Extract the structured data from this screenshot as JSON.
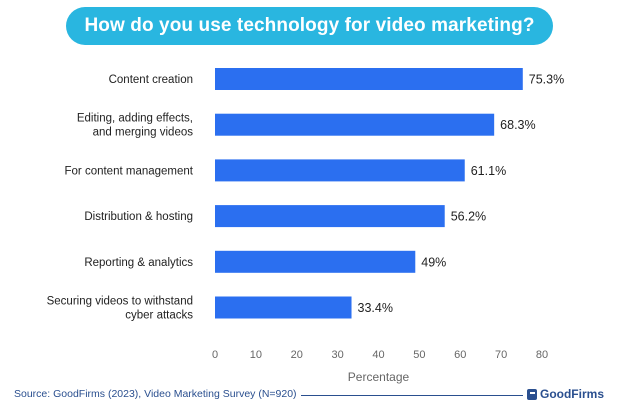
{
  "chart_data": {
    "type": "bar",
    "orientation": "horizontal",
    "title": "How do you use technology for video marketing?",
    "categories": [
      "Content creation",
      "Editing, adding effects,\nand merging videos",
      "For content management",
      "Distribution & hosting",
      "Reporting & analytics",
      "Securing videos to withstand\ncyber attacks"
    ],
    "values": [
      75.3,
      68.3,
      61.1,
      56.2,
      49,
      33.4
    ],
    "value_labels": [
      "75.3%",
      "68.3%",
      "61.1%",
      "56.2%",
      "49%",
      "33.4%"
    ],
    "xlabel": "Percentage",
    "ylabel": "",
    "xlim": [
      0,
      80
    ],
    "xticks": [
      0,
      10,
      20,
      30,
      40,
      50,
      60,
      70,
      80
    ],
    "grid": false,
    "bar_color": "#2b6ff0"
  },
  "footer": {
    "source": "Source: GoodFirms (2023), Video Marketing Survey (N=920)",
    "brand": "GoodFirms"
  },
  "colors": {
    "banner": "#29b6e0",
    "bar": "#2b6ff0",
    "footer": "#2a4f8f"
  }
}
